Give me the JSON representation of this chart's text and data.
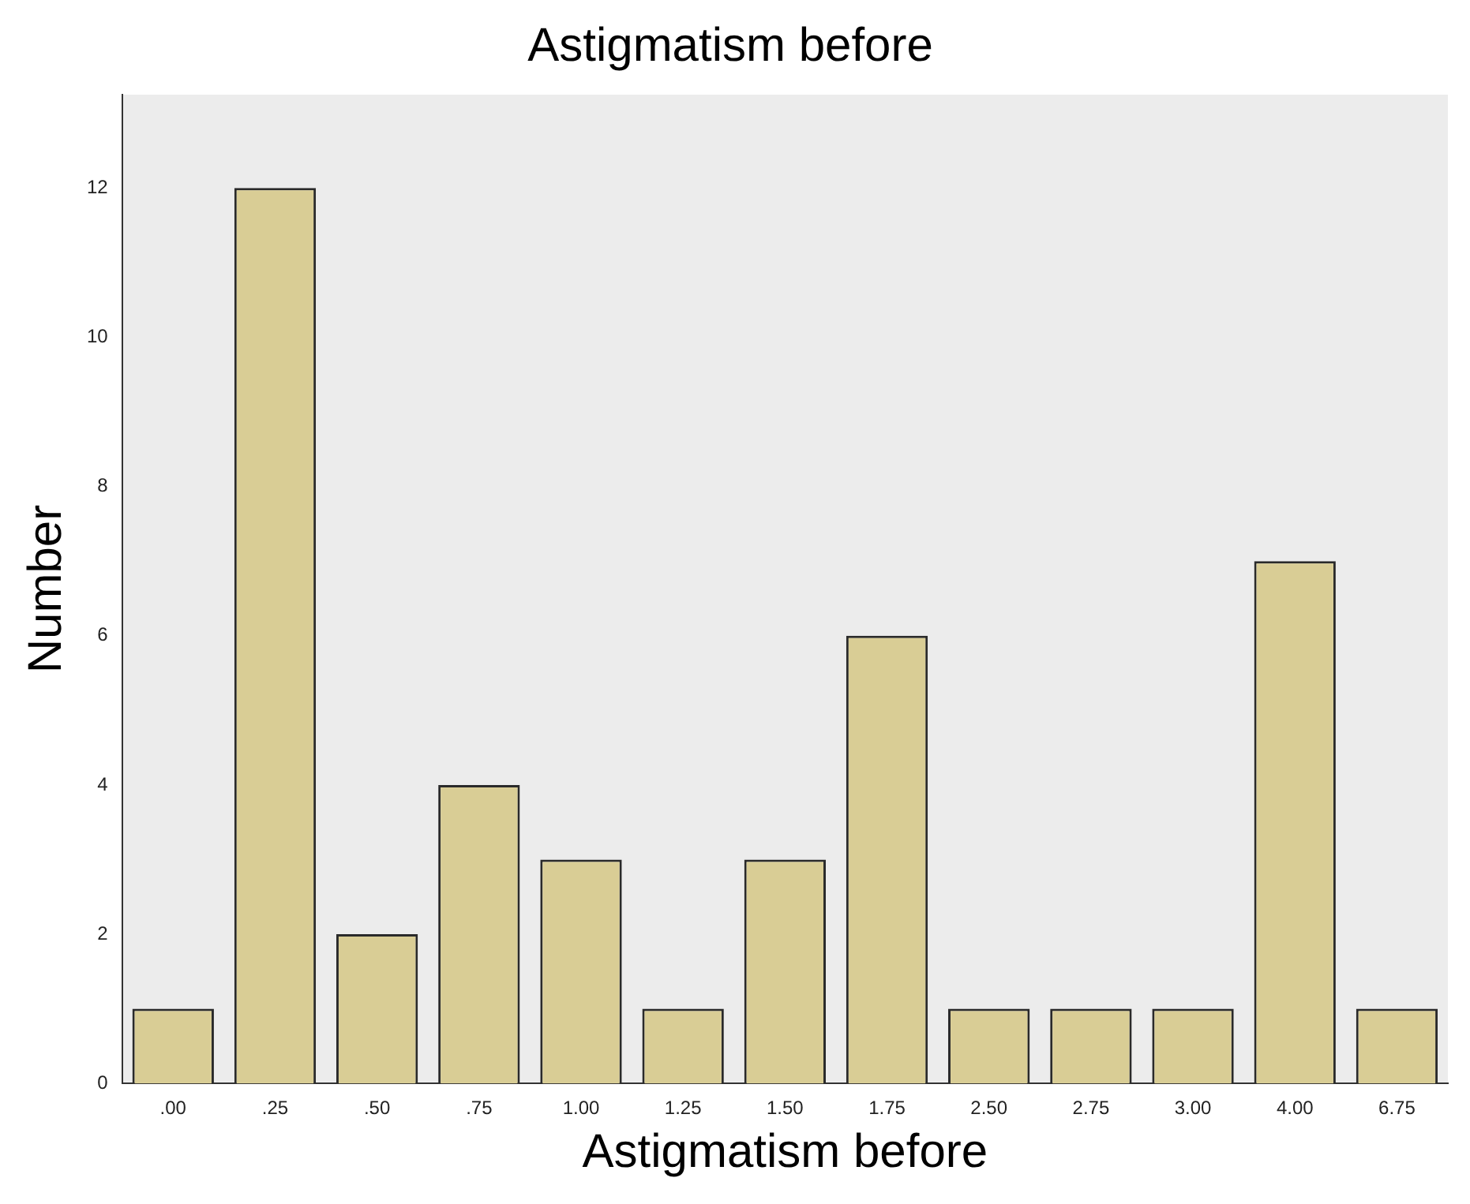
{
  "chart_data": {
    "type": "bar",
    "title": "Astigmatism before",
    "xlabel": "Astigmatism before",
    "ylabel": "Number",
    "categories": [
      ".00",
      ".25",
      ".50",
      ".75",
      "1.00",
      "1.25",
      "1.50",
      "1.75",
      "2.50",
      "2.75",
      "3.00",
      "4.00",
      "6.75"
    ],
    "values": [
      1,
      12,
      2,
      4,
      3,
      1,
      3,
      6,
      1,
      1,
      1,
      7,
      1
    ],
    "color": "#d9cd95",
    "ylim": [
      0,
      13.25
    ],
    "yticks": [
      0,
      2,
      4,
      6,
      8,
      10,
      12
    ],
    "grid": false,
    "legend": false
  }
}
